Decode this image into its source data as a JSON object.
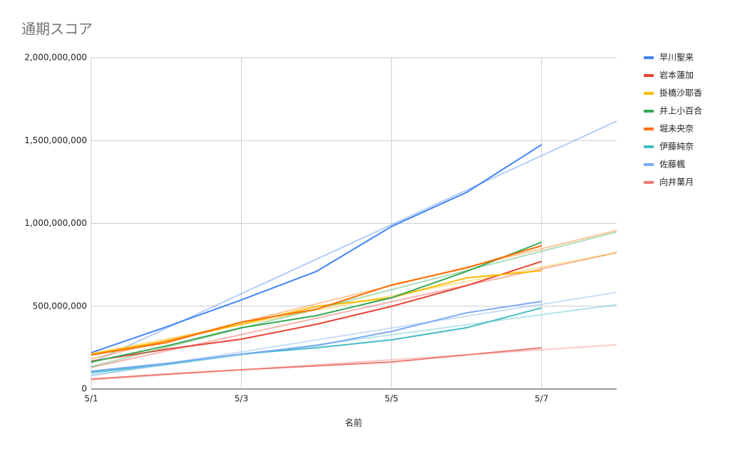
{
  "chart_data": {
    "type": "line",
    "title": "通期スコア",
    "x_label": "名前",
    "categories": [
      "5/1",
      null,
      "5/3",
      null,
      "5/5",
      null,
      "5/7",
      null
    ],
    "series": [
      {
        "name": "早川聖来",
        "color": "#4285f4",
        "values": [
          219000000,
          375000000,
          538000000,
          710000000,
          981000000,
          1187000000,
          1475000000,
          null
        ]
      },
      {
        "name": "岩本蓮加",
        "color": "#ea4335",
        "values": [
          168000000,
          240000000,
          301000000,
          391000000,
          499000000,
          624000000,
          770000000,
          null
        ]
      },
      {
        "name": "掛橋沙耶香",
        "color": "#fbbc04",
        "values": [
          211000000,
          290000000,
          391000000,
          499000000,
          551000000,
          671000000,
          714000000,
          null
        ]
      },
      {
        "name": "井上小百合",
        "color": "#34a853",
        "values": [
          163000000,
          260000000,
          370000000,
          443000000,
          551000000,
          710000000,
          886000000,
          null
        ]
      },
      {
        "name": "堀未央奈",
        "color": "#ff6d01",
        "values": [
          206000000,
          280000000,
          404000000,
          482000000,
          628000000,
          731000000,
          865000000,
          null
        ]
      },
      {
        "name": "伊藤純奈",
        "color": "#46bdc6",
        "values": [
          99000000,
          150000000,
          211000000,
          249000000,
          297000000,
          370000000,
          490000000,
          null
        ]
      },
      {
        "name": "佐藤楓",
        "color": "#7baaf7",
        "values": [
          108000000,
          155000000,
          211000000,
          262000000,
          348000000,
          460000000,
          529000000,
          null
        ]
      },
      {
        "name": "向井葉月",
        "color": "#f07b72",
        "values": [
          60000000,
          90000000,
          116000000,
          140000000,
          163000000,
          206000000,
          249000000,
          null
        ]
      }
    ],
    "ylim": [
      0,
      2000000000
    ],
    "yticks": [
      0,
      {
        "value": 500000000,
        "label": "500,000,000"
      },
      {
        "value": 1000000000,
        "label": "1,000,000,000"
      },
      {
        "value": 1500000000,
        "label": "1,500,000,000"
      },
      {
        "value": 2000000000,
        "label": "2,000,000,000"
      }
    ],
    "grid": true,
    "trendlines": true,
    "legend": "right"
  }
}
